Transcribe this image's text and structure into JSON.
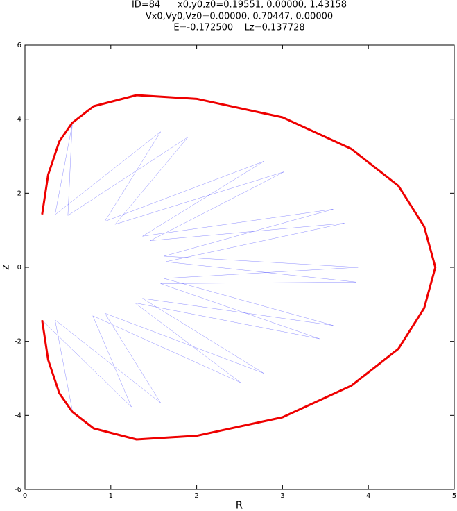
{
  "chart_data": {
    "type": "line",
    "title": [
      "ID=84      x0,y0,z0=0.19551, 0.00000, 1.43158",
      "Vx0,Vy0,Vz0=0.00000, 0.70447, 0.00000",
      "E=-0.172500    Lz=0.137728"
    ],
    "xlabel": "R",
    "ylabel": "z",
    "xlim": [
      0,
      5
    ],
    "ylim": [
      -6,
      6
    ],
    "xticks": [
      0,
      1,
      2,
      3,
      4,
      5
    ],
    "yticks": [
      -6,
      -4,
      -2,
      0,
      2,
      4,
      6
    ],
    "series": [
      {
        "color": "#0000ff",
        "width": 0.5,
        "opacity": 0.45,
        "x": [
          0.2,
          1.24,
          0.79,
          2.51,
          1.28,
          3.43,
          1.58,
          3.86,
          1.64,
          3.72,
          1.46,
          3.02,
          1.05,
          1.9,
          0.5,
          0.55,
          0.35,
          1.58,
          0.93,
          2.78,
          1.37,
          3.59,
          1.62,
          3.88,
          1.62,
          3.59,
          1.37,
          2.78,
          0.93,
          1.58,
          0.35,
          0.55
        ],
        "values": [
          -1.43,
          -3.77,
          -1.31,
          -3.11,
          -0.96,
          -1.93,
          -0.44,
          -0.4,
          0.15,
          1.19,
          0.72,
          2.58,
          1.16,
          3.52,
          1.4,
          3.85,
          1.42,
          3.66,
          1.24,
          2.86,
          0.84,
          1.57,
          0.3,
          0,
          -0.3,
          -1.57,
          -0.84,
          -2.86,
          -1.24,
          -3.66,
          -1.42,
          -3.85
        ]
      },
      {
        "color": "#ee0000",
        "width": 3,
        "opacity": 1,
        "x": [
          0.2,
          0.27,
          0.4,
          0.55,
          0.8,
          1.3,
          2.0,
          3.0,
          3.8,
          4.35,
          4.65,
          4.78,
          4.65,
          4.35,
          3.8,
          3.0,
          2.0,
          1.3,
          0.8,
          0.55,
          0.4,
          0.27,
          0.2
        ],
        "values": [
          -1.43,
          -2.5,
          -3.4,
          -3.9,
          -4.35,
          -4.65,
          -4.55,
          -4.05,
          -3.2,
          -2.2,
          -1.1,
          0,
          1.1,
          2.2,
          3.2,
          4.05,
          4.55,
          4.65,
          4.35,
          3.9,
          3.4,
          2.5,
          1.43
        ]
      }
    ]
  }
}
